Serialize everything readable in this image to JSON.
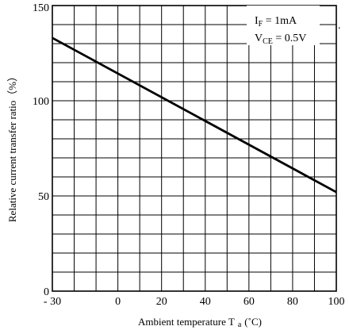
{
  "chart_data": {
    "type": "line",
    "xlabel": "Ambient temperature T",
    "xlabel_subscript": "a",
    "xlabel_unit": "(˚C)",
    "ylabel": "Relative current transfer ratio（%）",
    "xlim": [
      -30,
      100
    ],
    "ylim": [
      0,
      150
    ],
    "x_ticks": [
      -30,
      0,
      20,
      40,
      60,
      80,
      100
    ],
    "x_tick_labels": [
      "- 30",
      "0",
      "20",
      "40",
      "60",
      "80",
      "100"
    ],
    "y_ticks": [
      0,
      50,
      100,
      150
    ],
    "y_tick_labels": [
      "0",
      "50",
      "100",
      "150"
    ],
    "grid": true,
    "x_grid_step": 10,
    "y_grid_step": 10,
    "legend_position": "top-right",
    "conditions": [
      {
        "symbol": "I",
        "subscript": "F",
        "value": " = 1mA"
      },
      {
        "symbol": "V",
        "subscript": "CE",
        "value": " = 0.5V"
      }
    ],
    "stray_mark": ".",
    "series": [
      {
        "x": [
          -30,
          100
        ],
        "y": [
          133,
          52
        ],
        "color": "#000000"
      }
    ]
  }
}
